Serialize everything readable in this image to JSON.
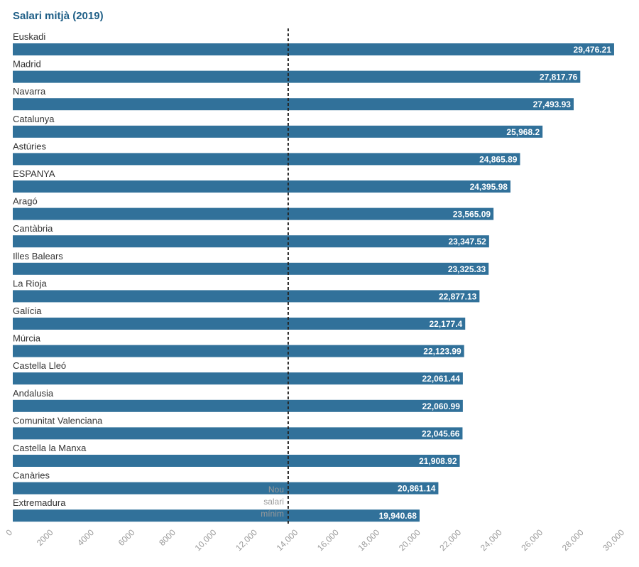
{
  "chart_data": {
    "type": "bar",
    "orientation": "horizontal",
    "title": "Salari mitjà (2019)",
    "xlabel": "",
    "ylabel": "",
    "xlim": [
      0,
      30000
    ],
    "bar_color": "#31719a",
    "value_label_color": "#ffffff",
    "categories": [
      "Euskadi",
      "Madrid",
      "Navarra",
      "Catalunya",
      "Astúries",
      "ESPANYA",
      "Aragó",
      "Cantàbria",
      "Illes Balears",
      "La Rioja",
      "Galícia",
      "Múrcia",
      "Castella Lleó",
      "Andalusia",
      "Comunitat Valenciana",
      "Castella la Manxa",
      "Canàries",
      "Extremadura"
    ],
    "values": [
      29476.21,
      27817.76,
      27493.93,
      25968.2,
      24865.89,
      24395.98,
      23565.09,
      23347.52,
      23325.33,
      22877.13,
      22177.4,
      22123.99,
      22061.44,
      22060.99,
      22045.66,
      21908.92,
      20861.14,
      19940.68
    ],
    "value_labels": [
      "29,476.21",
      "27,817.76",
      "27,493.93",
      "25,968.2",
      "24,865.89",
      "24,395.98",
      "23,565.09",
      "23,347.52",
      "23,325.33",
      "22,877.13",
      "22,177.4",
      "22,123.99",
      "22,061.44",
      "22,060.99",
      "22,045.66",
      "21,908.92",
      "20,861.14",
      "19,940.68"
    ],
    "x_ticks": [
      0,
      2000,
      4000,
      6000,
      8000,
      10000,
      12000,
      14000,
      16000,
      18000,
      20000,
      22000,
      24000,
      26000,
      28000,
      30000
    ],
    "x_tick_labels": [
      "0",
      "2000",
      "4000",
      "6000",
      "8000",
      "10,000",
      "12,000",
      "14,000",
      "16,000",
      "18,000",
      "20,000",
      "22,000",
      "24,000",
      "26,000",
      "28,000",
      "30,000"
    ],
    "reference_line": {
      "value": 13500,
      "style": "dashed",
      "label": [
        "Nou",
        "salari",
        "mínim"
      ]
    }
  }
}
